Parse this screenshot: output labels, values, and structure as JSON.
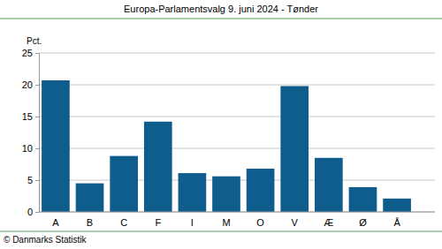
{
  "chart_data": {
    "type": "bar",
    "title": "Europa-Parlamentsvalg 9. juni 2024 - Tønder",
    "y_label": "Pct.",
    "source": "© Danmarks Statistik",
    "categories": [
      "A",
      "B",
      "C",
      "F",
      "I",
      "M",
      "O",
      "V",
      "Æ",
      "Ø",
      "Å"
    ],
    "values": [
      20.7,
      4.5,
      8.8,
      14.2,
      6.1,
      5.6,
      6.8,
      19.8,
      8.5,
      3.9,
      2.1
    ],
    "color": "#0f5d8c",
    "ylim": [
      0,
      25
    ],
    "yticks": [
      0,
      5,
      10,
      15,
      20,
      25
    ],
    "grid": true
  }
}
